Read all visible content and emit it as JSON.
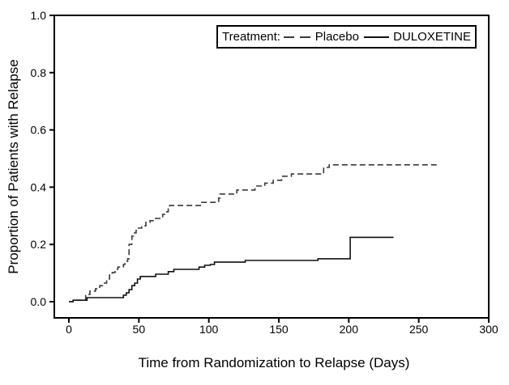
{
  "chart_data": {
    "type": "line",
    "subtype": "step-survival",
    "title": "",
    "xlabel": "Time from Randomization to Relapse (Days)",
    "ylabel": "Proportion of Patients with Relapse",
    "xlim": [
      0,
      300
    ],
    "ylim": [
      0.0,
      1.0
    ],
    "grid": false,
    "frame": true,
    "xticks": [
      {
        "value": 0,
        "label": "0"
      },
      {
        "value": 50,
        "label": "50"
      },
      {
        "value": 100,
        "label": "100"
      },
      {
        "value": 150,
        "label": "150"
      },
      {
        "value": 200,
        "label": "200"
      },
      {
        "value": 250,
        "label": "250"
      },
      {
        "value": 300,
        "label": "300"
      }
    ],
    "yticks": [
      {
        "value": 0.0,
        "label": "0.0"
      },
      {
        "value": 0.2,
        "label": "0.2"
      },
      {
        "value": 0.4,
        "label": "0.4"
      },
      {
        "value": 0.6,
        "label": "0.6"
      },
      {
        "value": 0.8,
        "label": "0.8"
      },
      {
        "value": 1.0,
        "label": "1.0"
      }
    ],
    "legend": {
      "position": "top-right",
      "title": "Treatment:",
      "entries": [
        {
          "label": "Placebo",
          "style": "dashed"
        },
        {
          "label": "DULOXETINE",
          "style": "solid"
        }
      ]
    },
    "colors": {
      "background": "#ffffff",
      "axis": "#000000",
      "placebo_line": "#3a3a3a",
      "duloxetine_line": "#111111"
    },
    "series": [
      {
        "name": "Placebo",
        "style": "dashed",
        "color": "#3a3a3a",
        "step": true,
        "points": [
          [
            0,
            0.0
          ],
          [
            3,
            0.005
          ],
          [
            12,
            0.025
          ],
          [
            15,
            0.037
          ],
          [
            19,
            0.045
          ],
          [
            22,
            0.056
          ],
          [
            24,
            0.065
          ],
          [
            27,
            0.079
          ],
          [
            29,
            0.093
          ],
          [
            31,
            0.102
          ],
          [
            33,
            0.113
          ],
          [
            35,
            0.121
          ],
          [
            39,
            0.13
          ],
          [
            40,
            0.141
          ],
          [
            42,
            0.15
          ],
          [
            43,
            0.2
          ],
          [
            45,
            0.229
          ],
          [
            46,
            0.24
          ],
          [
            48,
            0.249
          ],
          [
            49,
            0.257
          ],
          [
            52,
            0.265
          ],
          [
            55,
            0.277
          ],
          [
            58,
            0.283
          ],
          [
            62,
            0.291
          ],
          [
            67,
            0.305
          ],
          [
            70,
            0.314
          ],
          [
            71,
            0.328
          ],
          [
            72,
            0.336
          ],
          [
            94,
            0.347
          ],
          [
            107,
            0.362
          ],
          [
            108,
            0.376
          ],
          [
            120,
            0.39
          ],
          [
            133,
            0.404
          ],
          [
            140,
            0.414
          ],
          [
            146,
            0.424
          ],
          [
            152,
            0.438
          ],
          [
            159,
            0.446
          ],
          [
            182,
            0.469
          ],
          [
            186,
            0.478
          ],
          [
            263,
            0.478
          ]
        ]
      },
      {
        "name": "DULOXETINE",
        "style": "solid",
        "color": "#111111",
        "step": true,
        "points": [
          [
            0,
            0.0
          ],
          [
            3,
            0.005
          ],
          [
            13,
            0.014
          ],
          [
            39,
            0.023
          ],
          [
            41,
            0.031
          ],
          [
            43,
            0.042
          ],
          [
            45,
            0.056
          ],
          [
            47,
            0.065
          ],
          [
            49,
            0.079
          ],
          [
            51,
            0.088
          ],
          [
            62,
            0.096
          ],
          [
            71,
            0.105
          ],
          [
            75,
            0.113
          ],
          [
            93,
            0.121
          ],
          [
            97,
            0.127
          ],
          [
            101,
            0.13
          ],
          [
            104,
            0.138
          ],
          [
            126,
            0.144
          ],
          [
            178,
            0.15
          ],
          [
            201,
            0.225
          ],
          [
            232,
            0.225
          ]
        ]
      }
    ]
  }
}
